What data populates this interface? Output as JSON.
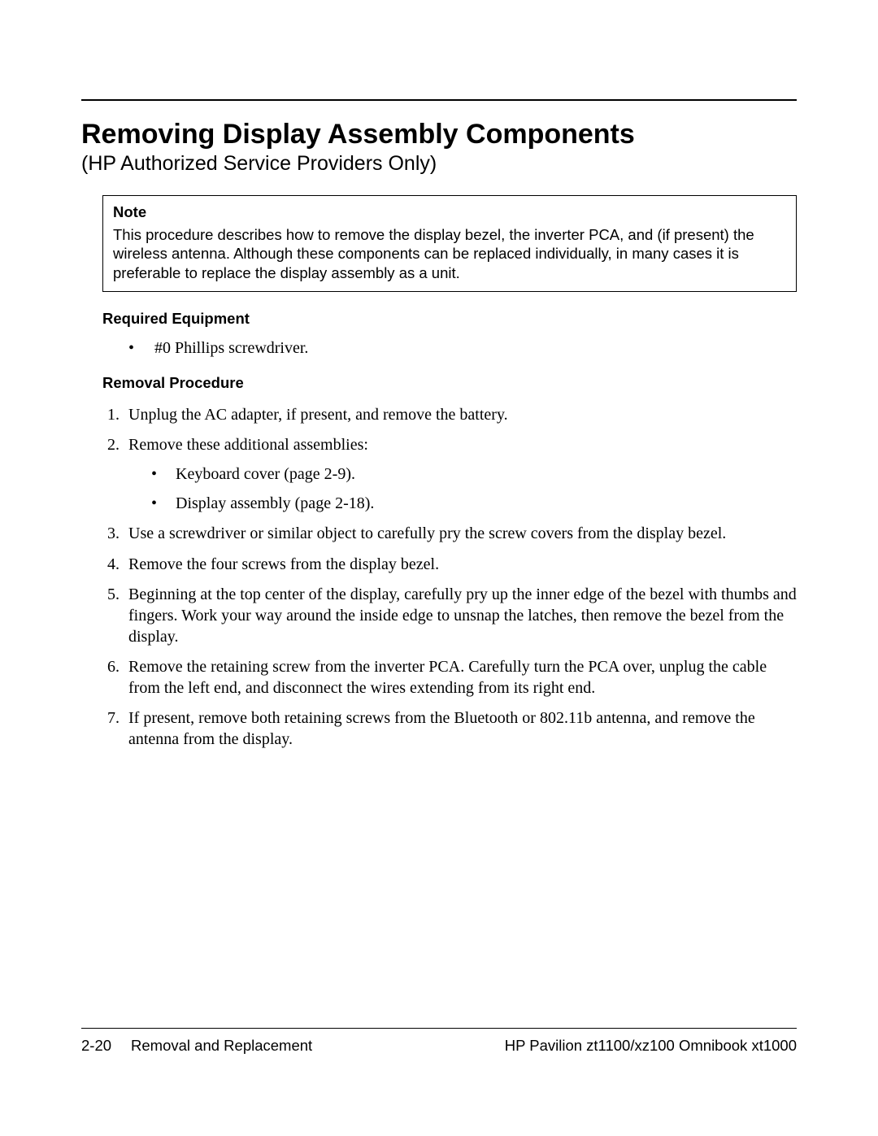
{
  "title": "Removing Display Assembly Components",
  "subtitle": "(HP Authorized Service Providers Only)",
  "note": {
    "heading": "Note",
    "body": "This procedure describes how to remove the display bezel, the inverter PCA, and (if present) the wireless antenna. Although these components can be replaced individually, in many cases it is preferable to replace the display assembly as a unit."
  },
  "sections": {
    "required_equipment": {
      "heading": "Required Equipment",
      "items": [
        "#0 Phillips screwdriver."
      ]
    },
    "removal_procedure": {
      "heading": "Removal Procedure",
      "steps": [
        {
          "text": "Unplug the AC adapter, if present, and remove the battery."
        },
        {
          "text": "Remove these additional assemblies:",
          "sub": [
            "Keyboard cover (page 2-9).",
            "Display assembly (page 2-18)."
          ]
        },
        {
          "text": "Use a screwdriver or similar object to carefully pry the screw covers from the display bezel."
        },
        {
          "text": "Remove the four screws from the display bezel."
        },
        {
          "text": "Beginning at the top center of the display, carefully pry up the inner edge of the bezel with thumbs and fingers. Work your way around the inside edge to unsnap the latches, then remove the bezel from the display."
        },
        {
          "text": "Remove the retaining screw from the inverter PCA. Carefully turn the PCA over, unplug the cable from the left end, and disconnect the wires extending from its right end."
        },
        {
          "text": "If present, remove both retaining screws from the Bluetooth or 802.11b antenna, and remove the antenna from the display."
        }
      ]
    }
  },
  "footer": {
    "page_number": "2-20",
    "section": "Removal and Replacement",
    "product": "HP Pavilion zt1100/xz100 Omnibook xt1000"
  }
}
